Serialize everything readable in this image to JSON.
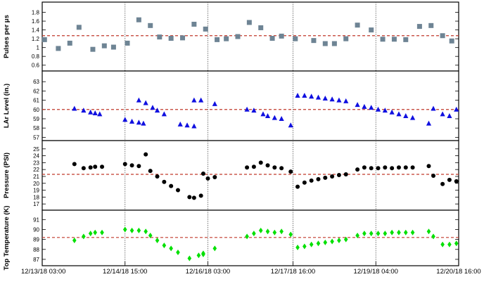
{
  "chart_data": {
    "type": "scatter",
    "x_axis": {
      "ticks": [
        "12/13/18 03:00",
        "12/14/18 15:00",
        "12/16/18 03:00",
        "12/17/18 16:00",
        "12/19/18 04:00",
        "12/20/18 16:00"
      ],
      "tick_hours": [
        0,
        36,
        72,
        109,
        145,
        181
      ],
      "range_hours": [
        0,
        181
      ]
    },
    "panels": [
      {
        "ylabel": "Pulses per μs",
        "ylim": [
          0.5,
          2.0
        ],
        "yticks": [
          "0.6",
          "0.8",
          "1",
          "1.2",
          "1.4",
          "1.6",
          "1.8"
        ],
        "ytick_values": [
          0.6,
          0.8,
          1.0,
          1.2,
          1.4,
          1.6,
          1.8
        ],
        "marker": "square",
        "color": "#6e8494",
        "reference_line": 1.27,
        "reference_color": "#c0392b",
        "points": [
          [
            1,
            1.18
          ],
          [
            7,
            0.98
          ],
          [
            12,
            1.1
          ],
          [
            16,
            1.46
          ],
          [
            22,
            0.96
          ],
          [
            27,
            1.04
          ],
          [
            31,
            1.01
          ],
          [
            37,
            1.1
          ],
          [
            42,
            1.63
          ],
          [
            47,
            1.5
          ],
          [
            51,
            1.24
          ],
          [
            56,
            1.21
          ],
          [
            61,
            1.22
          ],
          [
            66,
            1.53
          ],
          [
            71,
            1.42
          ],
          [
            76,
            1.18
          ],
          [
            80,
            1.2
          ],
          [
            85,
            1.25
          ],
          [
            90,
            1.57
          ],
          [
            95,
            1.45
          ],
          [
            100,
            1.21
          ],
          [
            104,
            1.26
          ],
          [
            110,
            1.2
          ],
          [
            118,
            1.16
          ],
          [
            123,
            1.09
          ],
          [
            127,
            1.09
          ],
          [
            132,
            1.2
          ],
          [
            137,
            1.51
          ],
          [
            143,
            1.4
          ],
          [
            148,
            1.19
          ],
          [
            153,
            1.19
          ],
          [
            158,
            1.18
          ],
          [
            164,
            1.48
          ],
          [
            169,
            1.5
          ],
          [
            174,
            1.27
          ],
          [
            178,
            1.15
          ],
          [
            183,
            1.22
          ]
        ]
      },
      {
        "ylabel": "LAr Level (in.)",
        "ylim": [
          56.8,
          64.0
        ],
        "yticks": [
          "57",
          "58",
          "59",
          "60",
          "61",
          "62",
          "63"
        ],
        "ytick_values": [
          57,
          58,
          59,
          60,
          61,
          62,
          63
        ],
        "marker": "triangle",
        "color": "#1010e0",
        "reference_line": 60.0,
        "reference_color": "#c0392b",
        "points": [
          [
            14,
            60.1
          ],
          [
            18,
            59.9
          ],
          [
            21,
            59.7
          ],
          [
            23,
            59.6
          ],
          [
            25,
            59.5
          ],
          [
            36,
            58.9
          ],
          [
            39,
            58.7
          ],
          [
            42,
            58.6
          ],
          [
            44,
            58.5
          ],
          [
            42,
            61.0
          ],
          [
            45,
            60.7
          ],
          [
            48,
            60.2
          ],
          [
            50,
            59.9
          ],
          [
            53,
            59.5
          ],
          [
            60,
            58.4
          ],
          [
            63,
            58.3
          ],
          [
            66,
            58.2
          ],
          [
            66,
            61.0
          ],
          [
            69,
            61.0
          ],
          [
            75,
            60.6
          ],
          [
            89,
            60.0
          ],
          [
            92,
            59.9
          ],
          [
            96,
            59.5
          ],
          [
            98,
            59.3
          ],
          [
            101,
            59.1
          ],
          [
            104,
            59.0
          ],
          [
            108,
            58.3
          ],
          [
            111,
            61.5
          ],
          [
            114,
            61.5
          ],
          [
            117,
            61.4
          ],
          [
            120,
            61.3
          ],
          [
            123,
            61.2
          ],
          [
            126,
            61.1
          ],
          [
            129,
            61.0
          ],
          [
            132,
            60.9
          ],
          [
            137,
            60.5
          ],
          [
            140,
            60.3
          ],
          [
            143,
            60.2
          ],
          [
            146,
            60.0
          ],
          [
            149,
            59.9
          ],
          [
            152,
            59.7
          ],
          [
            155,
            59.5
          ],
          [
            158,
            59.3
          ],
          [
            161,
            59.1
          ],
          [
            168,
            58.5
          ],
          [
            170,
            60.1
          ],
          [
            174,
            59.5
          ],
          [
            177,
            59.3
          ],
          [
            180,
            60.0
          ],
          [
            183,
            59.9
          ],
          [
            186,
            59.8
          ],
          [
            189,
            59.7
          ],
          [
            192,
            59.6
          ],
          [
            198,
            59.1
          ]
        ]
      },
      {
        "ylabel": "Pressure (PSI)",
        "ylim": [
          16.3,
          26.0
        ],
        "yticks": [
          "17",
          "18",
          "19",
          "20",
          "21",
          "22",
          "23",
          "24",
          "25"
        ],
        "ytick_values": [
          17,
          18,
          19,
          20,
          21,
          22,
          23,
          24,
          25
        ],
        "marker": "circle",
        "color": "#000000",
        "reference_line": 21.3,
        "reference_color": "#c0392b",
        "points": [
          [
            14,
            22.8
          ],
          [
            18,
            22.2
          ],
          [
            21,
            22.3
          ],
          [
            23,
            22.4
          ],
          [
            26,
            22.4
          ],
          [
            36,
            22.8
          ],
          [
            39,
            22.6
          ],
          [
            42,
            22.5
          ],
          [
            45,
            24.2
          ],
          [
            47,
            21.8
          ],
          [
            50,
            21.0
          ],
          [
            53,
            20.2
          ],
          [
            56,
            19.6
          ],
          [
            59,
            19.0
          ],
          [
            64,
            18.0
          ],
          [
            66,
            17.9
          ],
          [
            69,
            18.2
          ],
          [
            70,
            21.4
          ],
          [
            72,
            20.7
          ],
          [
            75,
            20.9
          ],
          [
            89,
            22.3
          ],
          [
            92,
            22.4
          ],
          [
            95,
            23.0
          ],
          [
            98,
            22.6
          ],
          [
            101,
            22.3
          ],
          [
            104,
            22.2
          ],
          [
            108,
            21.7
          ],
          [
            111,
            19.5
          ],
          [
            114,
            20.1
          ],
          [
            117,
            20.4
          ],
          [
            120,
            20.6
          ],
          [
            123,
            20.8
          ],
          [
            126,
            21.0
          ],
          [
            129,
            21.2
          ],
          [
            132,
            21.3
          ],
          [
            137,
            22.0
          ],
          [
            140,
            22.3
          ],
          [
            143,
            22.2
          ],
          [
            146,
            22.2
          ],
          [
            149,
            22.3
          ],
          [
            152,
            22.2
          ],
          [
            155,
            22.3
          ],
          [
            158,
            22.3
          ],
          [
            161,
            22.3
          ],
          [
            168,
            22.5
          ],
          [
            170,
            21.1
          ],
          [
            174,
            19.9
          ],
          [
            177,
            20.5
          ],
          [
            180,
            20.3
          ],
          [
            183,
            20.0
          ],
          [
            186,
            20.5
          ],
          [
            189,
            20.8
          ],
          [
            198,
            21.3
          ]
        ]
      },
      {
        "ylabel": "Top Temperature (K)",
        "ylim": [
          86.5,
          91.8
        ],
        "yticks": [
          "87",
          "88",
          "89",
          "90",
          "91"
        ],
        "ytick_values": [
          87,
          88,
          89,
          90,
          91
        ],
        "marker": "diamond",
        "color": "#00e000",
        "reference_line": 89.2,
        "reference_color": "#c0392b",
        "points": [
          [
            14,
            88.9
          ],
          [
            18,
            89.3
          ],
          [
            21,
            89.6
          ],
          [
            23,
            89.7
          ],
          [
            26,
            89.7
          ],
          [
            36,
            90.0
          ],
          [
            39,
            89.9
          ],
          [
            42,
            89.9
          ],
          [
            45,
            89.8
          ],
          [
            47,
            89.4
          ],
          [
            50,
            88.9
          ],
          [
            53,
            88.4
          ],
          [
            56,
            88.1
          ],
          [
            59,
            87.7
          ],
          [
            64,
            87.1
          ],
          [
            68,
            87.4
          ],
          [
            70,
            87.5
          ],
          [
            70,
            87.6
          ],
          [
            75,
            88.1
          ],
          [
            89,
            89.3
          ],
          [
            92,
            89.6
          ],
          [
            95,
            89.9
          ],
          [
            98,
            89.8
          ],
          [
            101,
            89.7
          ],
          [
            104,
            89.8
          ],
          [
            108,
            89.5
          ],
          [
            111,
            88.2
          ],
          [
            114,
            88.3
          ],
          [
            117,
            88.5
          ],
          [
            120,
            88.6
          ],
          [
            123,
            88.7
          ],
          [
            126,
            88.8
          ],
          [
            129,
            88.9
          ],
          [
            132,
            89.0
          ],
          [
            137,
            89.4
          ],
          [
            140,
            89.6
          ],
          [
            143,
            89.6
          ],
          [
            146,
            89.6
          ],
          [
            149,
            89.6
          ],
          [
            152,
            89.7
          ],
          [
            155,
            89.7
          ],
          [
            158,
            89.7
          ],
          [
            161,
            89.7
          ],
          [
            168,
            89.8
          ],
          [
            170,
            89.3
          ],
          [
            174,
            88.5
          ],
          [
            177,
            88.5
          ],
          [
            180,
            88.6
          ],
          [
            183,
            88.6
          ],
          [
            186,
            88.6
          ],
          [
            189,
            88.7
          ],
          [
            198,
            89.0
          ]
        ]
      }
    ]
  }
}
